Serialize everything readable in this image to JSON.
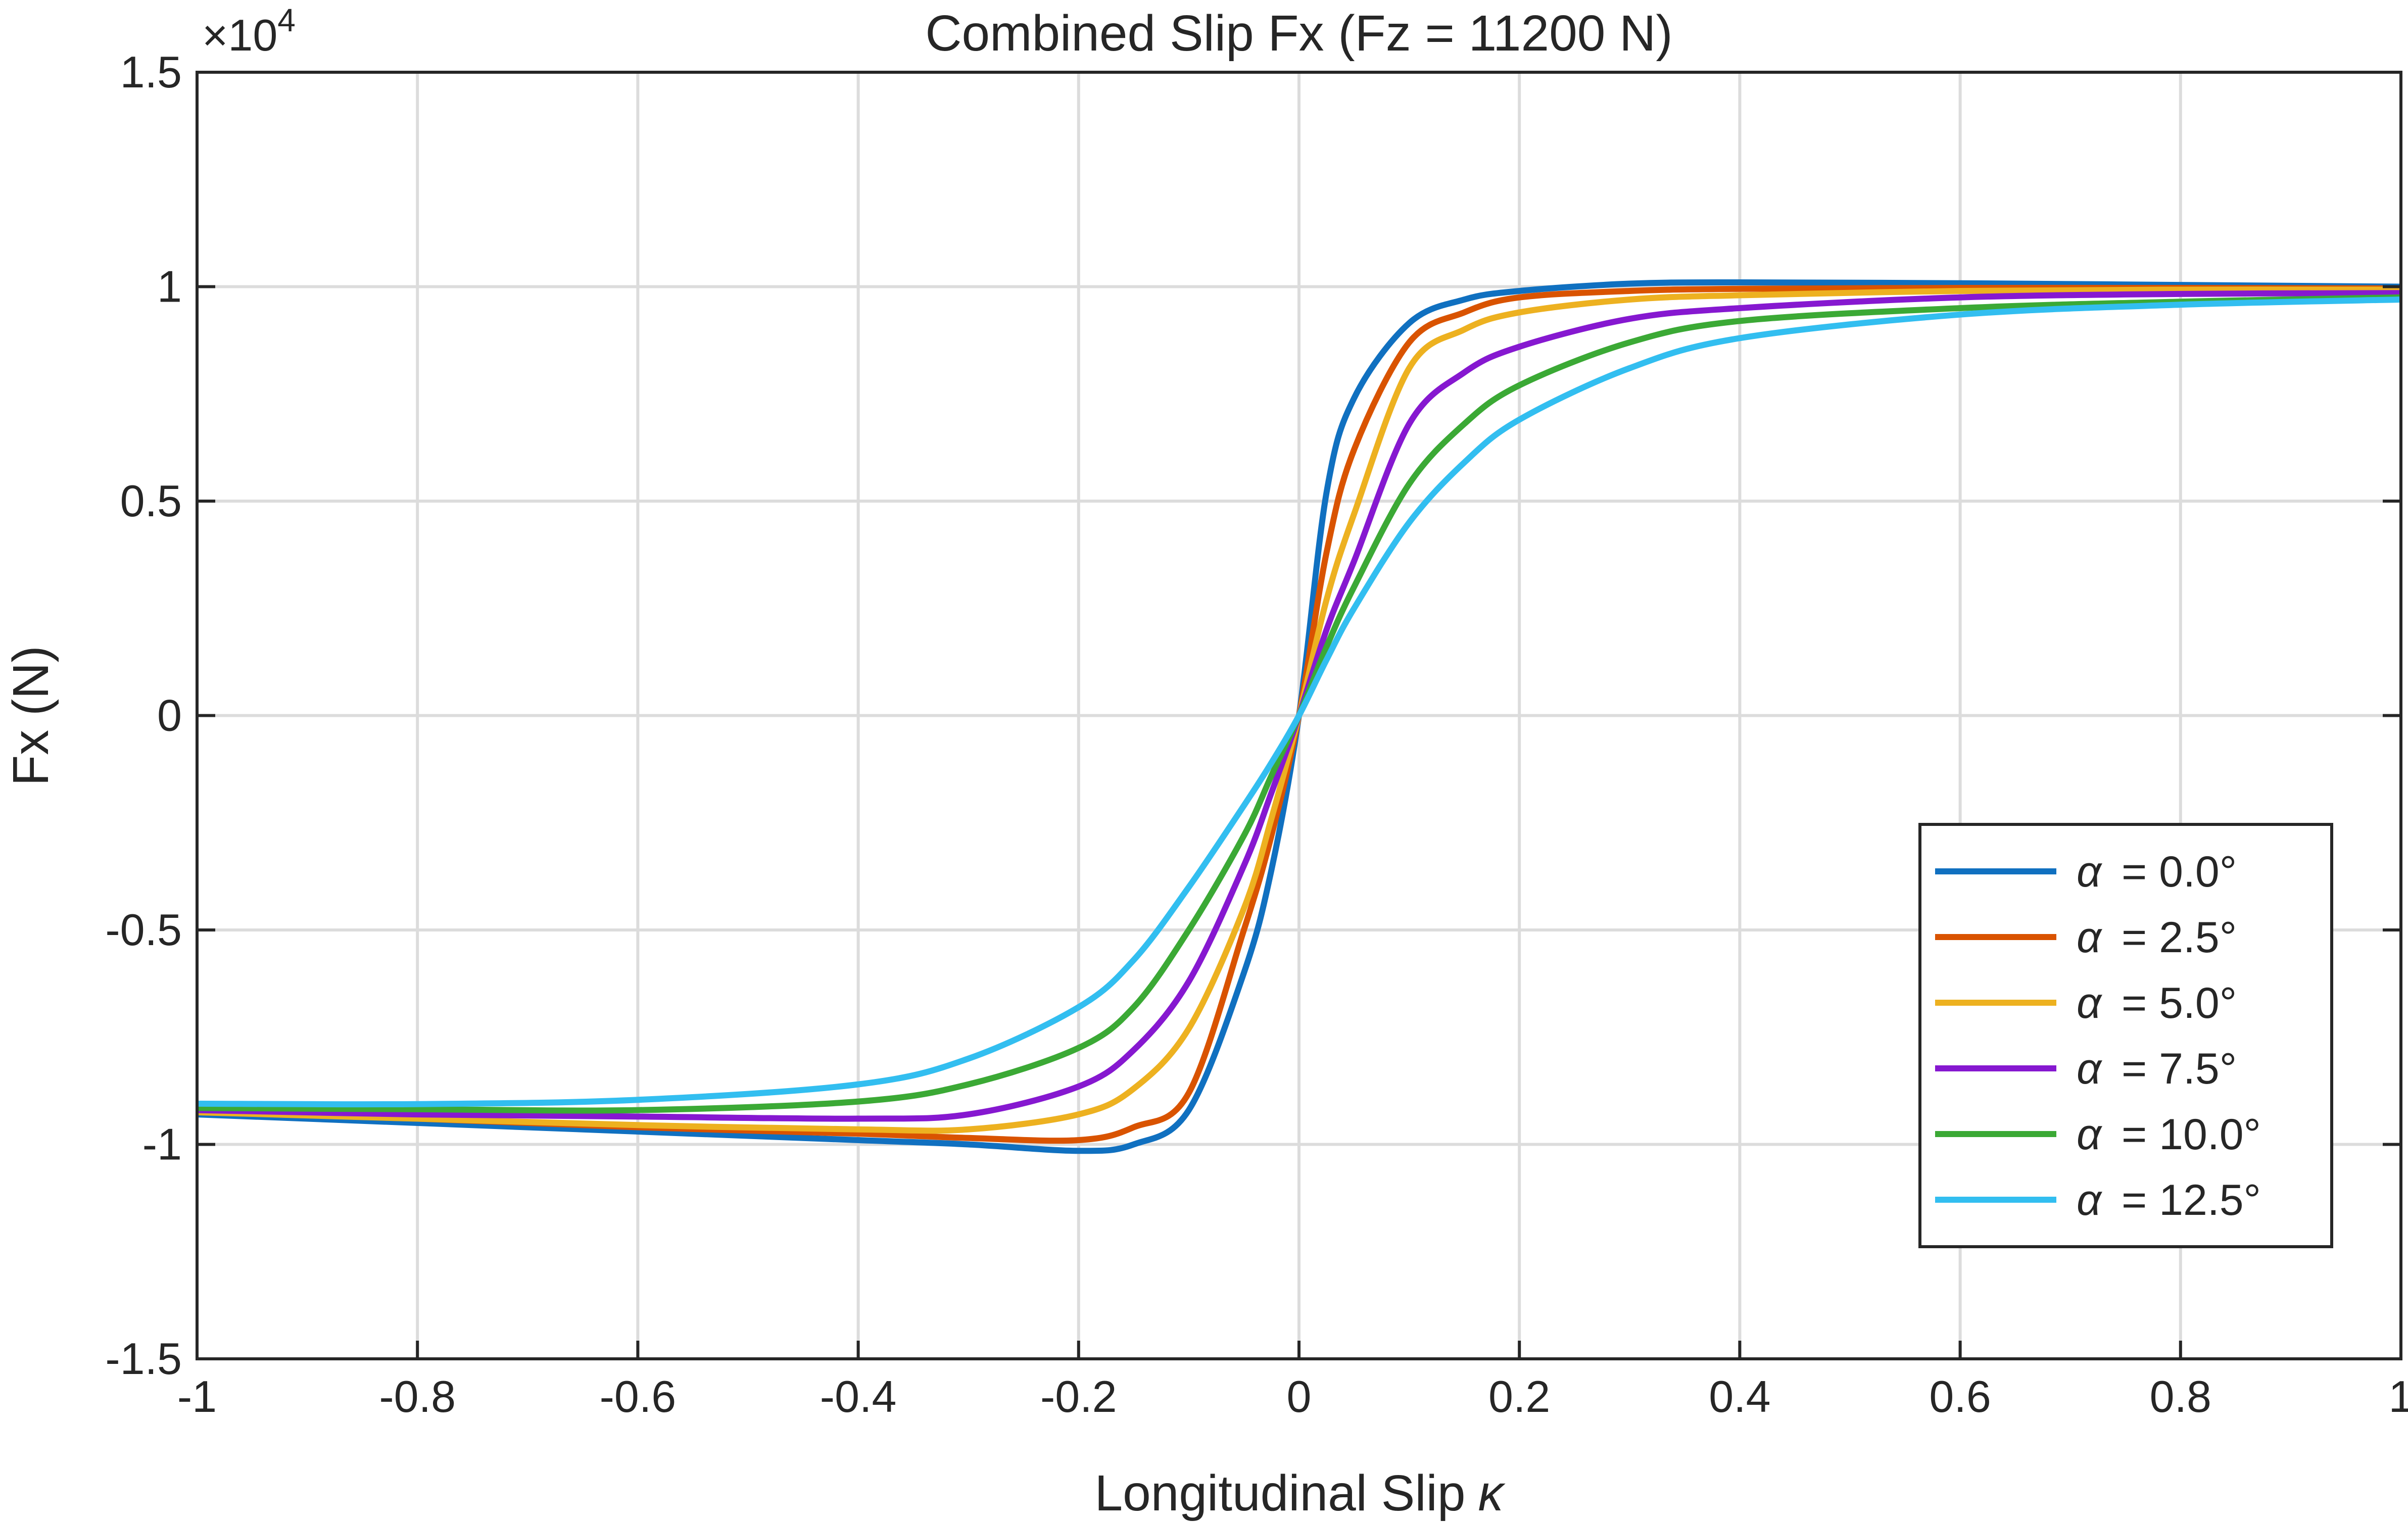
{
  "chart_data": {
    "type": "line",
    "title": "Combined Slip Fx (Fz = 11200 N)",
    "xlabel": "Longitudinal  Slip",
    "xlabel_symbol": "κ",
    "ylabel": "Fx (N)",
    "y_exponent_base": "×10",
    "y_exponent_power": "4",
    "xlim": [
      -1,
      1
    ],
    "ylim": [
      -1.5,
      1.5
    ],
    "y_scale_factor": 10000,
    "grid": true,
    "legend_placement": "bottom-right",
    "xticks": [
      "-1",
      "-0.8",
      "-0.6",
      "-0.4",
      "-0.2",
      "0",
      "0.2",
      "0.4",
      "0.6",
      "0.8",
      "1"
    ],
    "yticks": [
      "1.5",
      "1",
      "0.5",
      "0",
      "-0.5",
      "-1",
      "-1.5"
    ],
    "x": [
      -1,
      -0.8,
      -0.6,
      -0.4,
      -0.3,
      -0.2,
      -0.15,
      -0.1,
      -0.05,
      -0.025,
      0,
      0.025,
      0.05,
      0.1,
      0.15,
      0.2,
      0.3,
      0.4,
      0.6,
      0.8,
      1
    ],
    "series": [
      {
        "name": "α  =  0.0°",
        "symbol": "α",
        "value": "=  0.0°",
        "color": "#1070C0",
        "values": [
          -0.93,
          -0.95,
          -0.97,
          -0.99,
          -1.0,
          -1.015,
          -1.0,
          -0.92,
          -0.6,
          -0.36,
          0,
          0.52,
          0.74,
          0.915,
          0.97,
          0.99,
          1.007,
          1.01,
          1.008,
          1.004,
          1.0
        ]
      },
      {
        "name": "α  =  2.5°",
        "symbol": "α",
        "value": "=  2.5°",
        "color": "#D95300",
        "values": [
          -0.925,
          -0.94,
          -0.96,
          -0.975,
          -0.985,
          -0.99,
          -0.96,
          -0.88,
          -0.5,
          -0.28,
          0,
          0.38,
          0.62,
          0.87,
          0.94,
          0.975,
          0.99,
          0.995,
          0.997,
          0.997,
          0.996
        ]
      },
      {
        "name": "α  =  5.0°",
        "symbol": "α",
        "value": "=  5.0°",
        "color": "#EDB120",
        "values": [
          -0.925,
          -0.94,
          -0.955,
          -0.965,
          -0.965,
          -0.93,
          -0.87,
          -0.73,
          -0.45,
          -0.24,
          0,
          0.27,
          0.47,
          0.81,
          0.9,
          0.94,
          0.97,
          0.98,
          0.99,
          0.993,
          0.993
        ]
      },
      {
        "name": "α  =  7.5°",
        "symbol": "α",
        "value": "=  7.5°",
        "color": "#8618D0",
        "values": [
          -0.92,
          -0.93,
          -0.935,
          -0.94,
          -0.93,
          -0.865,
          -0.78,
          -0.62,
          -0.35,
          -0.18,
          0,
          0.2,
          0.36,
          0.68,
          0.8,
          0.86,
          0.925,
          0.95,
          0.975,
          0.983,
          0.985
        ]
      },
      {
        "name": "α  =  10.0°",
        "symbol": "α",
        "value": "=  10.0°",
        "color": "#3BA935",
        "values": [
          -0.915,
          -0.918,
          -0.92,
          -0.9,
          -0.86,
          -0.775,
          -0.68,
          -0.5,
          -0.28,
          -0.14,
          0,
          0.16,
          0.3,
          0.54,
          0.68,
          0.77,
          0.87,
          0.92,
          0.95,
          0.965,
          0.975
        ]
      },
      {
        "name": "α  =  12.5°",
        "symbol": "α",
        "value": "=  12.5°",
        "color": "#32BEF0",
        "values": [
          -0.905,
          -0.906,
          -0.896,
          -0.86,
          -0.8,
          -0.68,
          -0.57,
          -0.4,
          -0.21,
          -0.11,
          0,
          0.13,
          0.25,
          0.45,
          0.59,
          0.69,
          0.81,
          0.88,
          0.935,
          0.958,
          0.97
        ]
      }
    ]
  }
}
